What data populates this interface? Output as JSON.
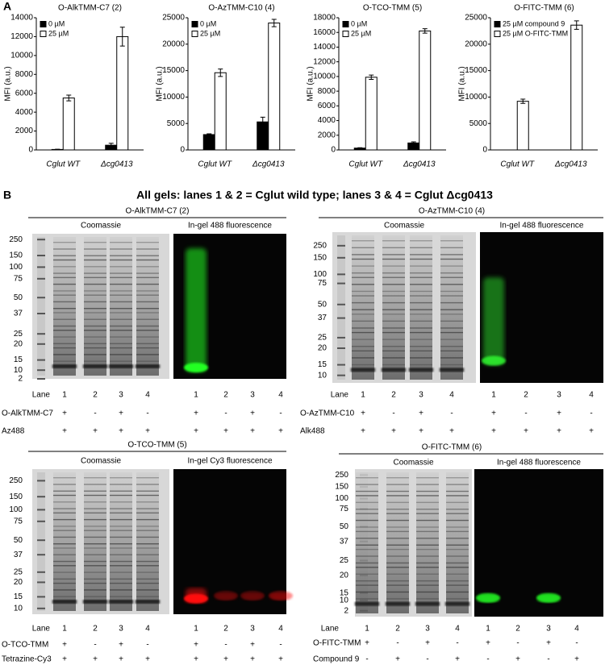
{
  "panel_a_label": "A",
  "chart_data": [
    {
      "type": "bar",
      "title": "O-AlkTMM-C7 (2)",
      "ylabel": "MFI (a.u.)",
      "categories": [
        "Cglut WT",
        "Δcg0413"
      ],
      "ylim": [
        0,
        14000
      ],
      "yticks": [
        0,
        2000,
        4000,
        6000,
        8000,
        10000,
        12000,
        14000
      ],
      "series": [
        {
          "name": "0 µM",
          "color": "#000000",
          "values": [
            50,
            500
          ],
          "errors": [
            30,
            200
          ]
        },
        {
          "name": "25 µM",
          "color": "#ffffff",
          "values": [
            5500,
            12000
          ],
          "errors": [
            300,
            1000
          ]
        }
      ]
    },
    {
      "type": "bar",
      "title": "O-AzTMM-C10 (4)",
      "ylabel": "MFI (a.u.)",
      "categories": [
        "Cglut WT",
        "Δcg0413"
      ],
      "ylim": [
        0,
        25000
      ],
      "yticks": [
        0,
        5000,
        10000,
        15000,
        20000,
        25000
      ],
      "series": [
        {
          "name": "0 µM",
          "color": "#000000",
          "values": [
            2900,
            5300
          ],
          "errors": [
            150,
            900
          ]
        },
        {
          "name": "25 µM",
          "color": "#ffffff",
          "values": [
            14600,
            24000
          ],
          "errors": [
            700,
            700
          ]
        }
      ]
    },
    {
      "type": "bar",
      "title": "O-TCO-TMM (5)",
      "ylabel": "MFI (a.u.)",
      "categories": [
        "Cglut WT",
        "Δcg0413"
      ],
      "ylim": [
        0,
        18000
      ],
      "yticks": [
        0,
        2000,
        4000,
        6000,
        8000,
        10000,
        12000,
        14000,
        16000,
        18000
      ],
      "series": [
        {
          "name": "0 µM",
          "color": "#000000",
          "values": [
            250,
            950
          ],
          "errors": [
            50,
            150
          ]
        },
        {
          "name": "25 µM",
          "color": "#ffffff",
          "values": [
            9900,
            16200
          ],
          "errors": [
            300,
            300
          ]
        }
      ]
    },
    {
      "type": "bar",
      "title": "O-FITC-TMM (6)",
      "ylabel": "MFI (a.u.)",
      "categories": [
        "Cglut WT",
        "Δcg0413"
      ],
      "ylim": [
        0,
        25000
      ],
      "yticks": [
        0,
        5000,
        10000,
        15000,
        20000,
        25000
      ],
      "series": [
        {
          "name": "25 µM compound 9",
          "color": "#000000",
          "values": [
            0,
            0
          ],
          "errors": [
            0,
            0
          ]
        },
        {
          "name": "25 µM O-FITC-TMM",
          "color": "#ffffff",
          "values": [
            9200,
            23600
          ],
          "errors": [
            400,
            800
          ]
        }
      ]
    }
  ],
  "panel_b": {
    "label": "B",
    "title": "All gels: lanes 1 & 2 = Cglut wild type; lanes 3 & 4 = Cglut Δcg0413",
    "gels": [
      {
        "title": "O-AlkTMM-C7 (2)",
        "stain_label": "Coomassie",
        "fluorescence_label": "In-gel 488 fluorescence",
        "markers": [
          250,
          150,
          100,
          75,
          50,
          37,
          25,
          20,
          15,
          10,
          2
        ],
        "lane_label": "Lane",
        "lanes": [
          "1",
          "2",
          "3",
          "4"
        ],
        "rows": [
          {
            "name": "O-AlkTMM-C7",
            "signs": [
              "+",
              "-",
              "+",
              "-"
            ]
          },
          {
            "name": "Az488",
            "signs": [
              "+",
              "+",
              "+",
              "+"
            ]
          }
        ]
      },
      {
        "title": "O-AzTMM-C10 (4)",
        "stain_label": "Coomassie",
        "fluorescence_label": "In-gel 488 fluorescence",
        "markers": [
          250,
          150,
          100,
          75,
          50,
          37,
          25,
          20,
          15,
          10
        ],
        "lane_label": "Lane",
        "lanes": [
          "1",
          "2",
          "3",
          "4"
        ],
        "rows": [
          {
            "name": "O-AzTMM-C10",
            "signs": [
              "+",
              "-",
              "+",
              "-"
            ]
          },
          {
            "name": "Alk488",
            "signs": [
              "+",
              "+",
              "+",
              "+"
            ]
          }
        ]
      },
      {
        "title": "O-TCO-TMM (5)",
        "stain_label": "Coomassie",
        "fluorescence_label": "In-gel Cy3 fluorescence",
        "markers": [
          250,
          150,
          100,
          75,
          50,
          37,
          25,
          20,
          15,
          10
        ],
        "lane_label": "Lane",
        "lanes": [
          "1",
          "2",
          "3",
          "4"
        ],
        "rows": [
          {
            "name": "O-TCO-TMM",
            "signs": [
              "+",
              "-",
              "+",
              "-"
            ]
          },
          {
            "name": "Tetrazine-Cy3",
            "signs": [
              "+",
              "+",
              "+",
              "+"
            ]
          }
        ]
      },
      {
        "title": "O-FITC-TMM (6)",
        "stain_label": "Coomassie",
        "fluorescence_label": "In-gel 488 fluorescence",
        "markers": [
          250,
          150,
          100,
          75,
          50,
          37,
          25,
          20,
          15,
          10,
          2
        ],
        "lane_label": "Lane",
        "lanes": [
          "1",
          "2",
          "3",
          "4"
        ],
        "rows": [
          {
            "name": "O-FITC-TMM",
            "signs": [
              "+",
              "-",
              "+",
              "-"
            ]
          },
          {
            "name": "Compound 9",
            "signs": [
              "-",
              "+",
              "-",
              "+"
            ]
          }
        ]
      }
    ]
  }
}
